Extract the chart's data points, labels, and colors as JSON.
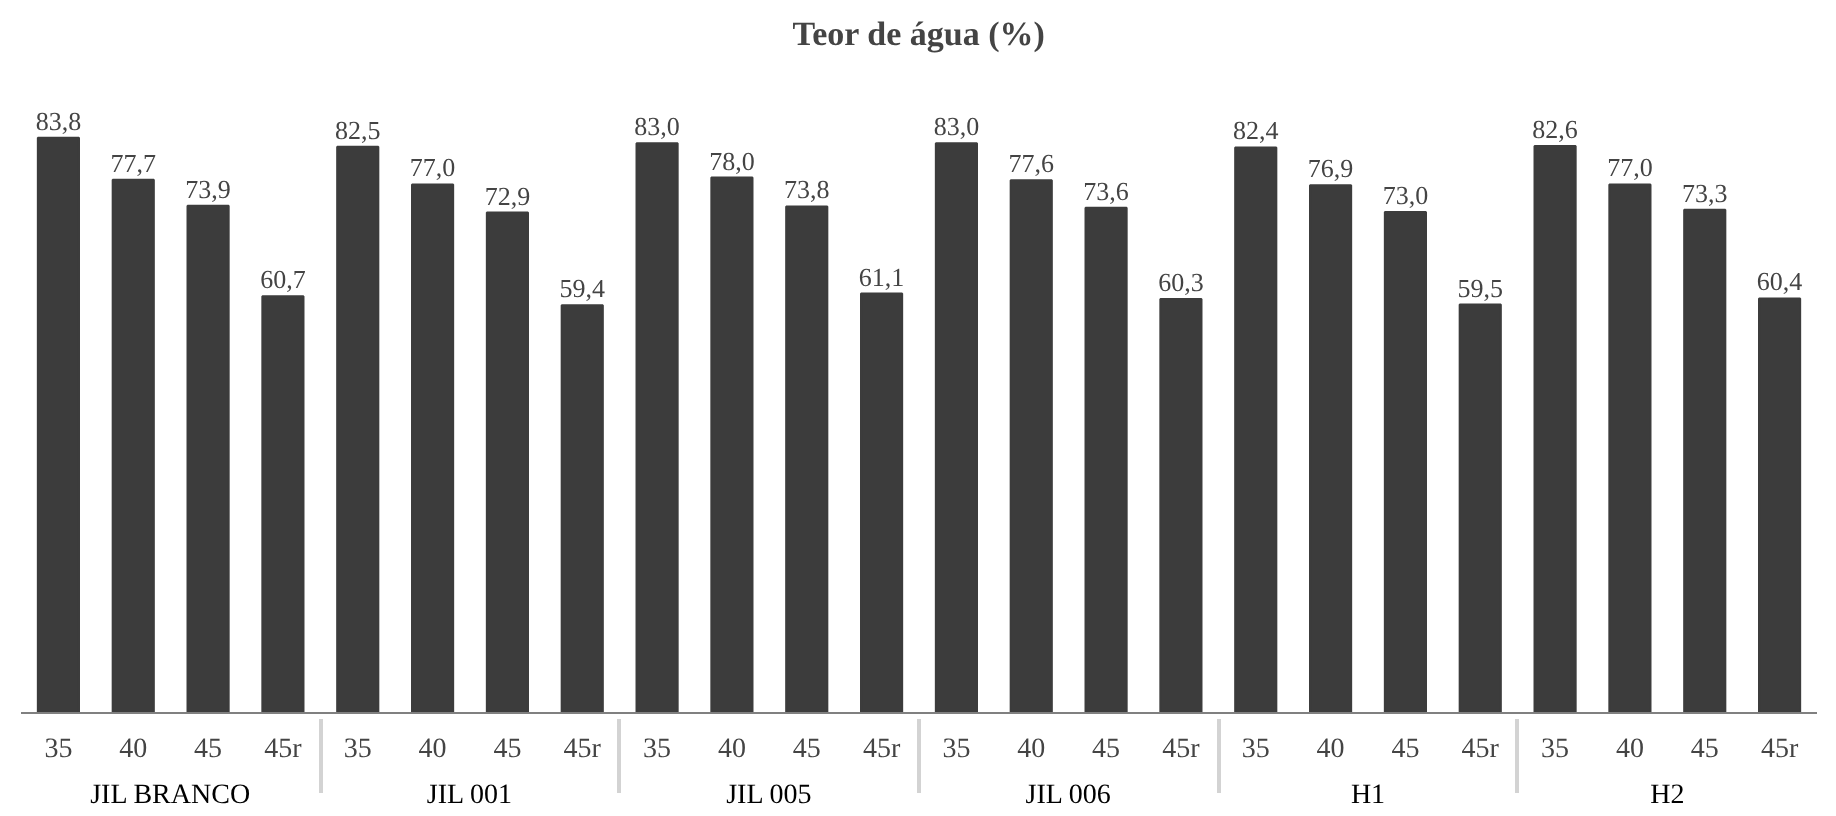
{
  "chart_data": {
    "type": "bar",
    "title": "Teor de água (%)",
    "categories": [
      "35",
      "40",
      "45",
      "45r",
      "35",
      "40",
      "45",
      "45r",
      "35",
      "40",
      "45",
      "45r",
      "35",
      "40",
      "45",
      "45r",
      "35",
      "40",
      "45",
      "45r",
      "35",
      "40",
      "45",
      "45r"
    ],
    "annotations": [
      "JIL BRANCO",
      "JIL 001",
      "JIL 005",
      "JIL 006",
      "H1",
      "H2"
    ],
    "values": [
      83.8,
      77.7,
      73.9,
      60.7,
      82.5,
      77.0,
      72.9,
      59.4,
      83.0,
      78.0,
      73.8,
      61.1,
      83.0,
      77.6,
      73.6,
      60.3,
      82.4,
      76.9,
      73.0,
      59.5,
      82.6,
      77.0,
      73.3,
      60.4
    ],
    "value_labels": [
      "83,8",
      "77,7",
      "73,9",
      "60,7",
      "82,5",
      "77,0",
      "72,9",
      "59,4",
      "83,0",
      "78,0",
      "73,8",
      "61,1",
      "83,0",
      "77,6",
      "73,6",
      "60,3",
      "82,4",
      "76,9",
      "73,0",
      "59,5",
      "82,6",
      "77,0",
      "73,3",
      "60,4"
    ],
    "color": "#3c3c3c",
    "grid": false
  }
}
